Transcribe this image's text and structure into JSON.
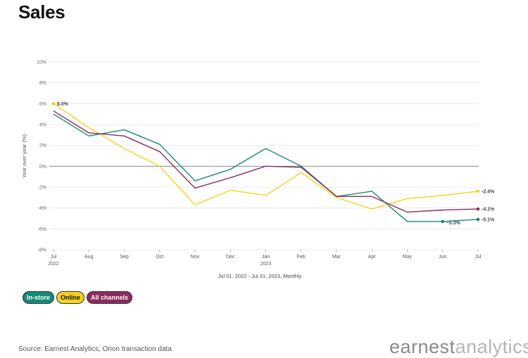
{
  "title": "Sales",
  "subtitle": "Jul 01, 2022 - Jul 31, 2023, Monthly",
  "source": "Source: Earnest Analytics, Orion transaction data",
  "brand": {
    "part1": "earnest",
    "part2": "analytics"
  },
  "legend": [
    {
      "label": "In-store",
      "color": "#178a74",
      "text_color": "#ffffff"
    },
    {
      "label": "Online",
      "color": "#f5d21d",
      "text_color": "#111111"
    },
    {
      "label": "All channels",
      "color": "#8a2b5e",
      "text_color": "#ffffff"
    }
  ],
  "chart_data": {
    "type": "line",
    "ylabel": "Year over year (%)",
    "xlabel": "",
    "ylim": [
      -8,
      10
    ],
    "yticks": [
      "-8%",
      "-6%",
      "-4%",
      "-2%",
      "0%",
      "2%",
      "4%",
      "6%",
      "8%",
      "10%"
    ],
    "ytick_values": [
      -8,
      -6,
      -4,
      -2,
      0,
      2,
      4,
      6,
      8,
      10
    ],
    "categories": [
      "Jul",
      "Aug",
      "Sep",
      "Oct",
      "Nov",
      "Dec",
      "Jan",
      "Feb",
      "Mar",
      "Apr",
      "May",
      "Jun",
      "Jul"
    ],
    "year_labels": {
      "0": "2022",
      "6": "2023"
    },
    "grid": true,
    "series": [
      {
        "name": "In-store",
        "color": "#178a74",
        "values": [
          5.0,
          2.9,
          3.5,
          2.1,
          -1.4,
          -0.3,
          1.7,
          0.0,
          -2.9,
          -2.4,
          -5.3,
          -5.3,
          -5.1
        ],
        "end_label": "-5.1%",
        "extra_marker": {
          "index": 11,
          "label": "−5.3%"
        }
      },
      {
        "name": "Online",
        "color": "#f5d21d",
        "values": [
          6.0,
          3.7,
          1.7,
          0.0,
          -3.7,
          -2.3,
          -2.8,
          -0.6,
          -3.0,
          -4.1,
          -3.1,
          -2.8,
          -2.4
        ],
        "end_label": "-2.4%",
        "start_label": "6.0%"
      },
      {
        "name": "All channels",
        "color": "#8a2b5e",
        "values": [
          5.3,
          3.2,
          2.9,
          1.4,
          -2.1,
          -1.1,
          0.0,
          -0.1,
          -2.9,
          -2.9,
          -4.4,
          -4.2,
          -4.1
        ],
        "end_label": "-4.1%"
      }
    ]
  }
}
